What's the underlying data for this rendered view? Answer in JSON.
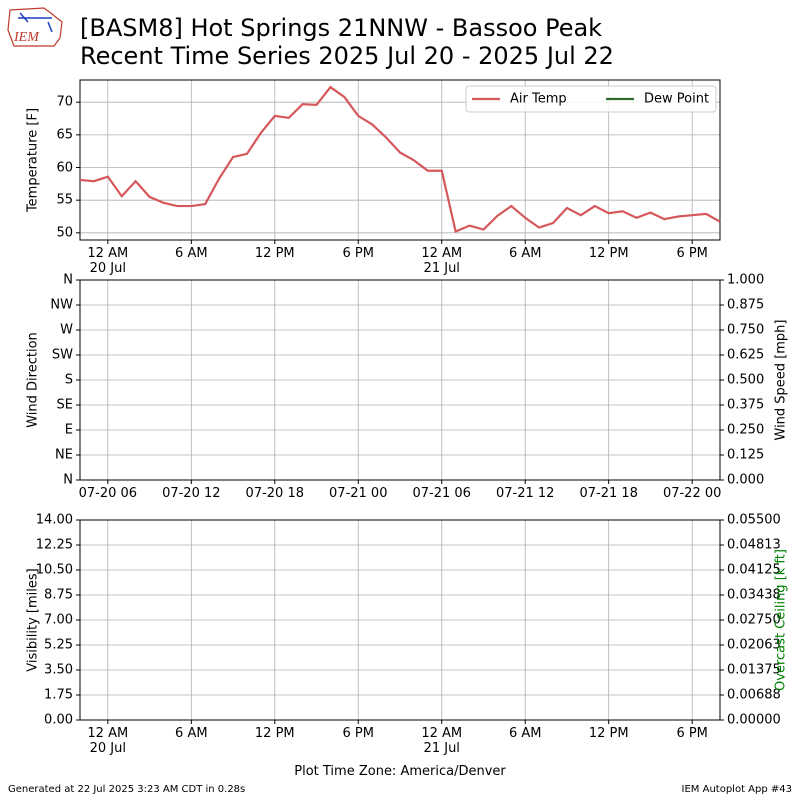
{
  "header": {
    "logo_text": "IEM",
    "title": "[BASM8] Hot Springs 21NNW - Bassoo Peak",
    "subtitle": "Recent Time Series 2025 Jul 20 - 2025 Jul 22"
  },
  "chart_data": [
    {
      "type": "line",
      "ylabel": "Temperature [F]",
      "x": [
        "2025-07-19 22:00",
        "2025-07-19 23:00",
        "2025-07-20 00:00",
        "2025-07-20 01:00",
        "2025-07-20 02:00",
        "2025-07-20 03:00",
        "2025-07-20 04:00",
        "2025-07-20 05:00",
        "2025-07-20 06:00",
        "2025-07-20 07:00",
        "2025-07-20 08:00",
        "2025-07-20 09:00",
        "2025-07-20 10:00",
        "2025-07-20 11:00",
        "2025-07-20 12:00",
        "2025-07-20 13:00",
        "2025-07-20 14:00",
        "2025-07-20 15:00",
        "2025-07-20 16:00",
        "2025-07-20 17:00",
        "2025-07-20 18:00",
        "2025-07-20 19:00",
        "2025-07-20 20:00",
        "2025-07-20 21:00",
        "2025-07-20 22:00",
        "2025-07-20 23:00",
        "2025-07-21 00:00",
        "2025-07-21 01:00",
        "2025-07-21 02:00",
        "2025-07-21 03:00",
        "2025-07-21 04:00",
        "2025-07-21 05:00",
        "2025-07-21 06:00",
        "2025-07-21 07:00",
        "2025-07-21 08:00",
        "2025-07-21 09:00",
        "2025-07-21 10:00",
        "2025-07-21 11:00",
        "2025-07-21 12:00",
        "2025-07-21 13:00",
        "2025-07-21 14:00",
        "2025-07-21 15:00",
        "2025-07-21 16:00",
        "2025-07-21 17:00",
        "2025-07-21 18:00",
        "2025-07-21 19:00",
        "2025-07-21 20:00"
      ],
      "series": [
        {
          "name": "Air Temp",
          "color": "#d6585c",
          "values": [
            58.1,
            57.9,
            58.6,
            55.6,
            57.9,
            55.5,
            54.6,
            54.1,
            54.1,
            54.4,
            58.3,
            61.6,
            62.1,
            65.3,
            67.9,
            67.6,
            69.7,
            69.6,
            72.3,
            70.8,
            67.9,
            66.6,
            64.6,
            62.3,
            61.1,
            59.5,
            59.5,
            50.2,
            51.1,
            50.5,
            52.6,
            54.1,
            52.3,
            50.8,
            51.5,
            53.8,
            52.7,
            54.1,
            53.0,
            53.3,
            52.3,
            53.1,
            52.1,
            52.5,
            52.7,
            52.9,
            51.7
          ]
        },
        {
          "name": "Dew Point",
          "color": "#2e6b2e",
          "values": [
            null,
            null,
            null,
            null,
            null,
            null,
            null,
            null,
            null,
            null,
            null,
            null,
            null,
            null,
            null,
            null,
            null,
            null,
            null,
            null,
            null,
            null,
            null,
            null,
            null,
            null,
            null,
            null,
            null,
            null,
            null,
            null,
            null,
            null,
            null,
            null,
            null,
            null,
            null,
            null,
            null,
            null,
            null,
            null,
            null,
            null,
            null
          ]
        }
      ],
      "xlim": [
        "2025-07-19 22:00",
        "2025-07-21 20:00"
      ],
      "xticks": [
        {
          "value": "2025-07-20 00:00",
          "label": "12 AM\n20 Jul"
        },
        {
          "value": "2025-07-20 06:00",
          "label": "6 AM"
        },
        {
          "value": "2025-07-20 12:00",
          "label": "12 PM"
        },
        {
          "value": "2025-07-20 18:00",
          "label": "6 PM"
        },
        {
          "value": "2025-07-21 00:00",
          "label": "12 AM\n21 Jul"
        },
        {
          "value": "2025-07-21 06:00",
          "label": "6 AM"
        },
        {
          "value": "2025-07-21 12:00",
          "label": "12 PM"
        },
        {
          "value": "2025-07-21 18:00",
          "label": "6 PM"
        }
      ],
      "ylim": [
        48.9,
        73.4
      ],
      "yticks": [
        50,
        55,
        60,
        65,
        70
      ],
      "grid": true,
      "legend": "upper right"
    },
    {
      "type": "line",
      "ylabel": "Wind Direction",
      "y2label": "Wind Speed [mph]",
      "xlim": [
        "2025-07-19 22:00",
        "2025-07-21 20:00"
      ],
      "xticks": [
        {
          "value": "2025-07-20 00:00",
          "label": "07-20 06"
        },
        {
          "value": "2025-07-20 06:00",
          "label": "07-20 12"
        },
        {
          "value": "2025-07-20 12:00",
          "label": "07-20 18"
        },
        {
          "value": "2025-07-20 18:00",
          "label": "07-21 00"
        },
        {
          "value": "2025-07-21 00:00",
          "label": "07-21 06"
        },
        {
          "value": "2025-07-21 06:00",
          "label": "07-21 12"
        },
        {
          "value": "2025-07-21 12:00",
          "label": "07-21 18"
        },
        {
          "value": "2025-07-21 18:00",
          "label": "07-22 00"
        }
      ],
      "ylim": [
        0,
        360
      ],
      "yticks": [
        {
          "value": 0,
          "label": "N"
        },
        {
          "value": 45,
          "label": "NE"
        },
        {
          "value": 90,
          "label": "E"
        },
        {
          "value": 135,
          "label": "SE"
        },
        {
          "value": 180,
          "label": "S"
        },
        {
          "value": 225,
          "label": "SW"
        },
        {
          "value": 270,
          "label": "W"
        },
        {
          "value": 315,
          "label": "NW"
        },
        {
          "value": 360,
          "label": "N"
        }
      ],
      "y2lim": [
        0,
        1
      ],
      "y2ticks": [
        {
          "value": 0,
          "label": "0.000"
        },
        {
          "value": 0.125,
          "label": "0.125"
        },
        {
          "value": 0.25,
          "label": "0.250"
        },
        {
          "value": 0.375,
          "label": "0.375"
        },
        {
          "value": 0.5,
          "label": "0.500"
        },
        {
          "value": 0.625,
          "label": "0.625"
        },
        {
          "value": 0.75,
          "label": "0.750"
        },
        {
          "value": 0.875,
          "label": "0.875"
        },
        {
          "value": 1,
          "label": "1.000"
        }
      ],
      "grid": true
    },
    {
      "type": "line",
      "ylabel": "Visibility [miles]",
      "y2label": "Overcast Ceiling [k ft]",
      "y2label_color": "#008000",
      "xlabel": "Plot Time Zone: America/Denver",
      "xlim": [
        "2025-07-19 22:00",
        "2025-07-21 20:00"
      ],
      "xticks": [
        {
          "value": "2025-07-20 00:00",
          "label": "12 AM\n20 Jul"
        },
        {
          "value": "2025-07-20 06:00",
          "label": "6 AM"
        },
        {
          "value": "2025-07-20 12:00",
          "label": "12 PM"
        },
        {
          "value": "2025-07-20 18:00",
          "label": "6 PM"
        },
        {
          "value": "2025-07-21 00:00",
          "label": "12 AM\n21 Jul"
        },
        {
          "value": "2025-07-21 06:00",
          "label": "6 AM"
        },
        {
          "value": "2025-07-21 12:00",
          "label": "12 PM"
        },
        {
          "value": "2025-07-21 18:00",
          "label": "6 PM"
        }
      ],
      "ylim": [
        0,
        14
      ],
      "yticks": [
        {
          "value": 0,
          "label": "0.00"
        },
        1.75,
        {
          "value": 3.5,
          "label": "3.50"
        },
        5.25,
        {
          "value": 7,
          "label": "7.00"
        },
        8.75,
        {
          "value": 10.5,
          "label": "10.50"
        },
        12.25,
        {
          "value": 14,
          "label": "14.00"
        }
      ],
      "y2lim": [
        0,
        0.055
      ],
      "y2ticks": [
        {
          "value": 0,
          "label": "0.00000"
        },
        {
          "value": 0.006875,
          "label": "0.00688"
        },
        {
          "value": 0.01375,
          "label": "0.01375"
        },
        {
          "value": 0.020625,
          "label": "0.02063"
        },
        {
          "value": 0.0275,
          "label": "0.02750"
        },
        {
          "value": 0.034375,
          "label": "0.03438"
        },
        {
          "value": 0.04125,
          "label": "0.04125"
        },
        {
          "value": 0.048125,
          "label": "0.04813"
        },
        {
          "value": 0.055,
          "label": "0.05500"
        }
      ],
      "grid": true
    }
  ],
  "footer": {
    "left": "Generated at 22 Jul 2025 3:23 AM CDT in 0.28s",
    "right": "IEM Autoplot App #43"
  }
}
